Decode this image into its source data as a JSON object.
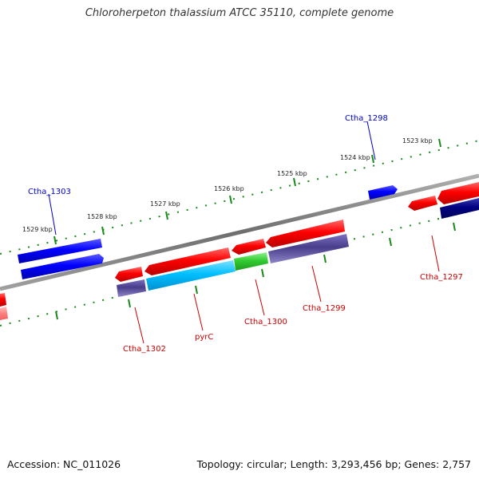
{
  "title": "Chloroherpeton thalassium ATCC 35110, complete genome",
  "footer": {
    "accession": "Accession: NC_011026",
    "summary": "Topology: circular; Length: 3,293,456 bp; Genes: 2,757"
  },
  "colors": {
    "backbone": "#808080",
    "tick": "#1a8a1a",
    "forward_gene": "#e60000",
    "forward_label": "#cc0000",
    "reverse_gene_label": "#0000cc",
    "cds_forward": "#ff0000",
    "cds_blue": "#0000ff",
    "cds_navy": "#000080",
    "cds_purple": "#483d8b",
    "cds_cyan": "#00bfff",
    "cds_green": "#32cd32",
    "cds_pink": "#ff8080"
  },
  "kbp_labels": [
    "1523 kbp",
    "1524 kbp",
    "1525 kbp",
    "1526 kbp",
    "1527 kbp",
    "1528 kbp",
    "1529 kbp"
  ],
  "gene_labels": {
    "ctha_1298": "Ctha_1298",
    "ctha_1303": "Ctha_1303",
    "ctha_1297": "Ctha_1297",
    "ctha_1299": "Ctha_1299",
    "ctha_1300": "Ctha_1300",
    "pyrc": "pyrC",
    "ctha_1302": "Ctha_1302"
  }
}
